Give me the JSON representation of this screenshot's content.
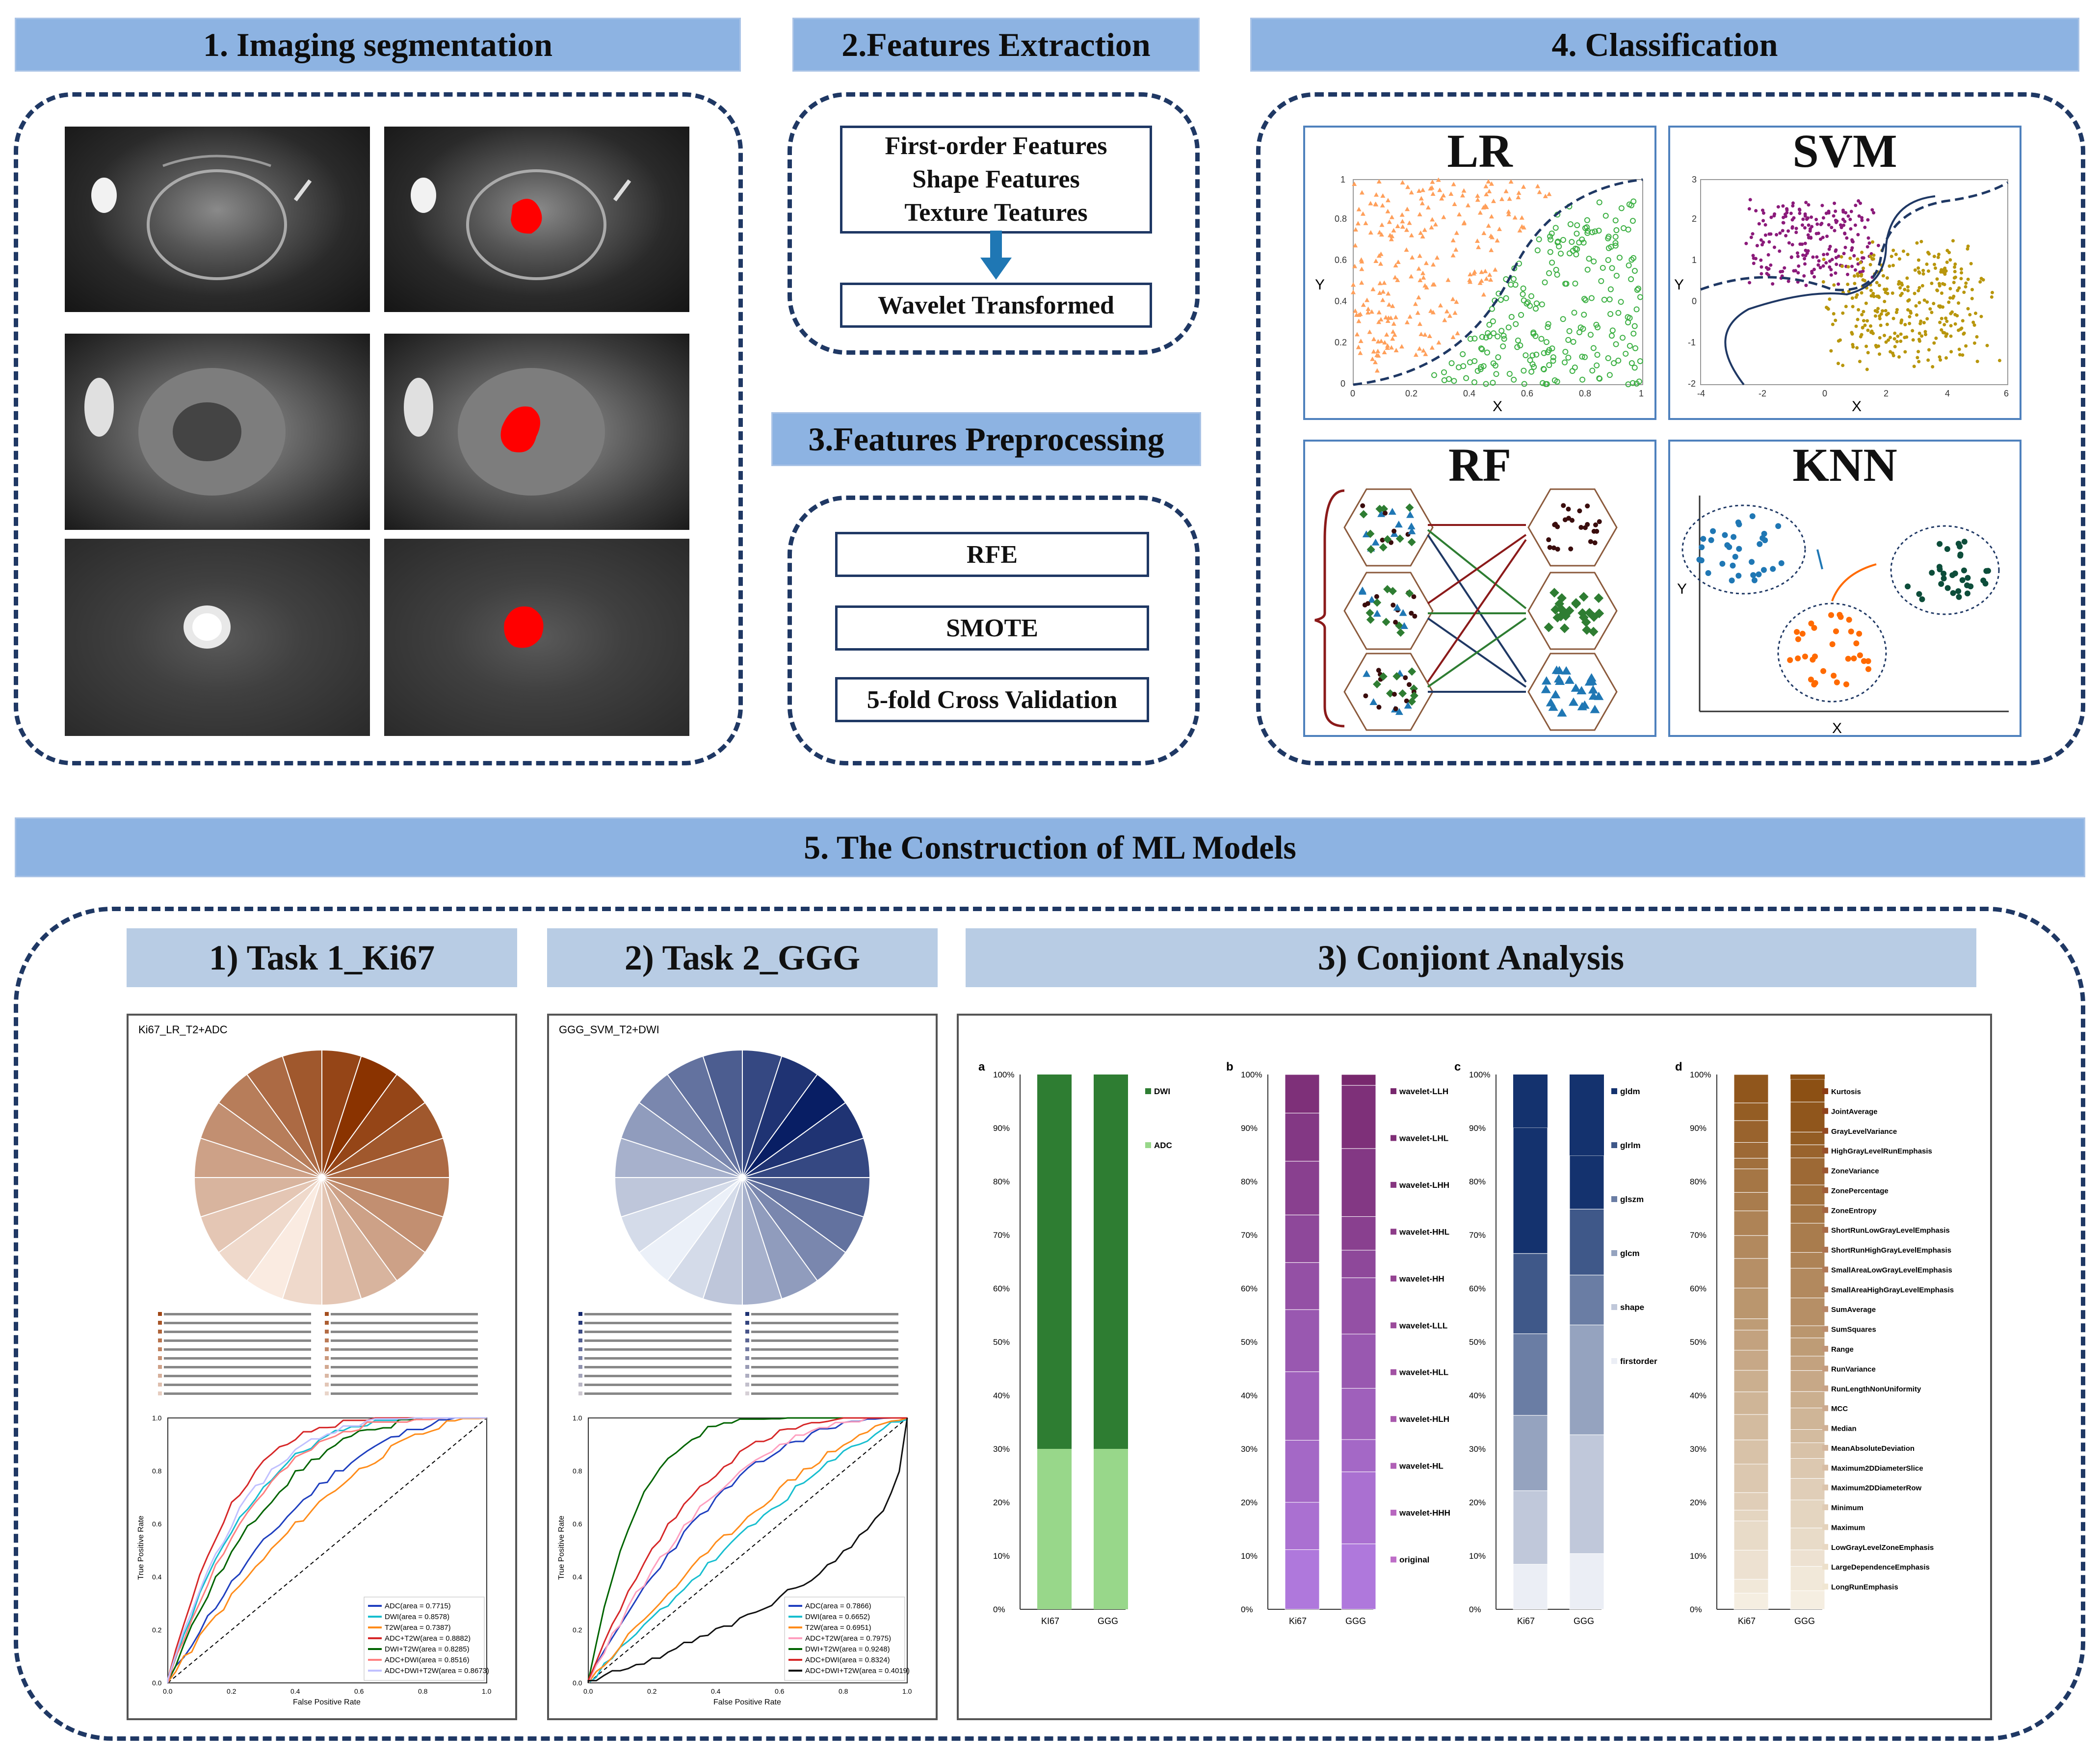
{
  "sections": {
    "seg": "1. Imaging segmentation",
    "extract": "2.Features Extraction",
    "preproc": "3.Features Preprocessing",
    "classif": "4. Classification",
    "construct": "5. The Construction of ML Models"
  },
  "extraction": {
    "features": [
      "First-order Features",
      "Shape Features",
      "Texture Teatures"
    ],
    "wavelet": "Wavelet Transformed"
  },
  "preprocessing": [
    "RFE",
    "SMOTE",
    "5-fold Cross Validation"
  ],
  "classifiers": {
    "lr": "LR",
    "svm": "SVM",
    "rf": "RF",
    "knn": "KNN",
    "x": "X",
    "y": "Y",
    "lr_xticks": [
      "0",
      "0.2",
      "0.4",
      "0.6",
      "0.8",
      "1"
    ],
    "lr_yticks": [
      "0",
      "0.2",
      "0.4",
      "0.6",
      "0.8",
      "1"
    ],
    "svm_xticks": [
      "-4",
      "-2",
      "0",
      "2",
      "4",
      "6"
    ],
    "svm_yticks": [
      "-2",
      "-1",
      "0",
      "1",
      "2",
      "3"
    ]
  },
  "tasks": {
    "t1": "1) Task 1_Ki67",
    "t2": "2) Task 2_GGG",
    "t3": "3) Conjiont Analysis"
  },
  "ki67_plot": {
    "title": "Ki67_LR_T2+ADC",
    "xlabel": "False Positive Rate",
    "ylabel": "True Positive Rate",
    "legend": [
      "ADC(area = 0.7715)",
      "DWI(area = 0.8578)",
      "T2W(area = 0.7387)",
      "ADC+T2W(area = 0.8882)",
      "DWI+T2W(area = 0.8285)",
      "ADC+DWI(area = 0.8516)",
      "ADC+DWI+T2W(area = 0.8673)"
    ],
    "legend_colors": [
      "#1f3fbf",
      "#17becf",
      "#ff8c1a",
      "#d62728",
      "#006400",
      "#ff7f7f",
      "#c0c0ff"
    ],
    "ticks": [
      "0.0",
      "0.2",
      "0.4",
      "0.6",
      "0.8",
      "1.0"
    ]
  },
  "ggg_plot": {
    "title": "GGG_SVM_T2+DWI",
    "xlabel": "False Positive Rate",
    "ylabel": "True Positive Rate",
    "legend": [
      "ADC(area = 0.7866)",
      "DWI(area = 0.6652)",
      "T2W(area = 0.6951)",
      "ADC+T2W(area = 0.7975)",
      "DWI+T2W(area = 0.9248)",
      "ADC+DWI(area = 0.8324)",
      "ADC+DWI+T2W(area = 0.4019)"
    ],
    "legend_colors": [
      "#1f3fbf",
      "#17becf",
      "#ff8c1a",
      "#ff9fbf",
      "#006400",
      "#d62728",
      "#111111"
    ],
    "ticks": [
      "0.0",
      "0.2",
      "0.4",
      "0.6",
      "0.8",
      "1.0"
    ]
  },
  "conjoint": {
    "a_label": "a",
    "b_label": "b",
    "c_label": "c",
    "d_label": "d",
    "yticks": [
      "0%",
      "10%",
      "20%",
      "30%",
      "40%",
      "50%",
      "60%",
      "70%",
      "80%",
      "90%",
      "100%"
    ],
    "bars": [
      "Ki67",
      "GGG"
    ],
    "a_bars": [
      "KI67",
      "GGG"
    ],
    "a_legend": [
      "DWI",
      "ADC"
    ],
    "b_legend": [
      "wavelet-LLH",
      "wavelet-LHL",
      "wavelet-LHH",
      "wavelet-HHL",
      "wavelet-HH",
      "wavelet-LLL",
      "wavelet-HLL",
      "wavelet-HLH",
      "wavelet-HL",
      "wavelet-HHH",
      "original"
    ],
    "c_legend": [
      "gldm",
      "glrlm",
      "glszm",
      "glcm",
      "shape",
      "firstorder"
    ],
    "d_legend": [
      "Kurtosis",
      "JointAverage",
      "GrayLevelVariance",
      "HighGrayLevelRunEmphasis",
      "ZoneVariance",
      "ZonePercentage",
      "ZoneEntropy",
      "ShortRunLowGrayLevelEmphasis",
      "ShortRunHighGrayLevelEmphasis",
      "SmallAreaLowGrayLevelEmphasis",
      "SmallAreaHighGrayLevelEmphasis",
      "SumAverage",
      "SumSquares",
      "Range",
      "RunVariance",
      "RunLengthNonUniformity",
      "MCC",
      "Median",
      "MeanAbsoluteDeviation",
      "Maximum2DDiameterSlice",
      "Maximum2DDiameterRow",
      "Minimum",
      "Maximum",
      "LowGrayLevelZoneEmphasis",
      "LargeDependenceEmphasis",
      "LongRunEmphasis"
    ],
    "a_ki67": [
      30,
      70
    ],
    "a_ggg": [
      30,
      70
    ]
  },
  "colors": {
    "header": "#8db3e2",
    "subheader": "#b8cce4",
    "frame": "#1f3864",
    "mask": "#ff0000",
    "dwi": "#2e7d32",
    "adc": "#98d78a"
  }
}
